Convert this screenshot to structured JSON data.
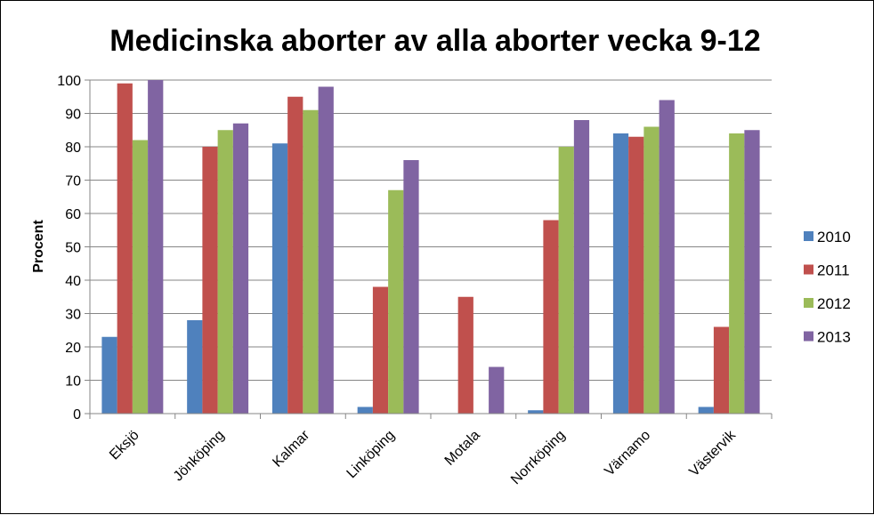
{
  "chart_data": {
    "type": "bar",
    "title": "Medicinska aborter av alla aborter vecka 9-12",
    "xlabel": "",
    "ylabel": "Procent",
    "ylim": [
      0,
      100
    ],
    "yticks": [
      0,
      10,
      20,
      30,
      40,
      50,
      60,
      70,
      80,
      90,
      100
    ],
    "grid": true,
    "legend_position": "right",
    "categories": [
      "Eksjö",
      "Jönköping",
      "Kalmar",
      "Linköping",
      "Motala",
      "Norrköping",
      "Värnamo",
      "Västervik"
    ],
    "series": [
      {
        "name": "2010",
        "color": "#4F81BD",
        "values": [
          23,
          28,
          81,
          2,
          0,
          1,
          84,
          2
        ]
      },
      {
        "name": "2011",
        "color": "#C0504D",
        "values": [
          99,
          80,
          95,
          38,
          35,
          58,
          83,
          26
        ]
      },
      {
        "name": "2012",
        "color": "#9BBB59",
        "values": [
          82,
          85,
          91,
          67,
          null,
          80,
          86,
          84
        ]
      },
      {
        "name": "2013",
        "color": "#8064A2",
        "values": [
          100,
          87,
          98,
          76,
          14,
          88,
          94,
          85
        ]
      }
    ]
  }
}
